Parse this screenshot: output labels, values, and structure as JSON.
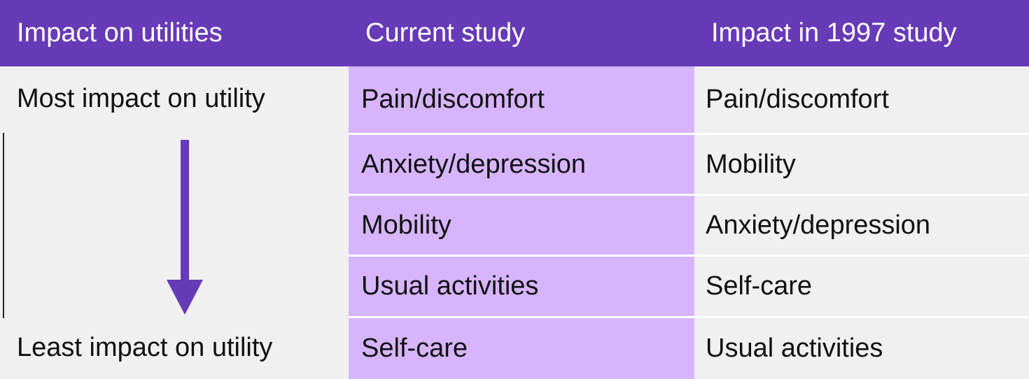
{
  "table": {
    "header": [
      "Impact on utilities",
      "Current study",
      "Impact in 1997 study"
    ],
    "scale": {
      "top": "Most impact on utility",
      "bottom": "Least impact on utility"
    },
    "rows": [
      [
        "Pain/discomfort",
        "Pain/discomfort"
      ],
      [
        "Anxiety/depression",
        "Mobility"
      ],
      [
        "Mobility",
        "Anxiety/depression"
      ],
      [
        "Usual activities",
        "Self-care"
      ],
      [
        "Self-care",
        "Usual activities"
      ]
    ]
  }
}
